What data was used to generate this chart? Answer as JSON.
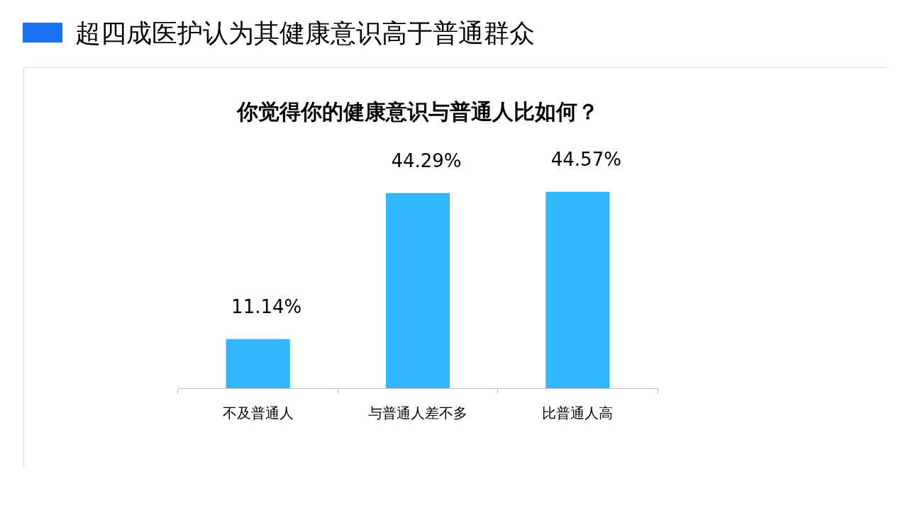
{
  "chart_data": {
    "type": "bar",
    "title": "超四成医护认为其健康意识高于普通群众",
    "subtitle": "你觉得你的健康意识与普通人比如何？",
    "categories": [
      "不及普通人",
      "与普通人差不多",
      "比普通人高"
    ],
    "values": [
      11.14,
      44.29,
      44.57
    ],
    "color": "#31b6fd",
    "value_labels": [
      "11.14%",
      "44.29%",
      "44.57%"
    ]
  }
}
